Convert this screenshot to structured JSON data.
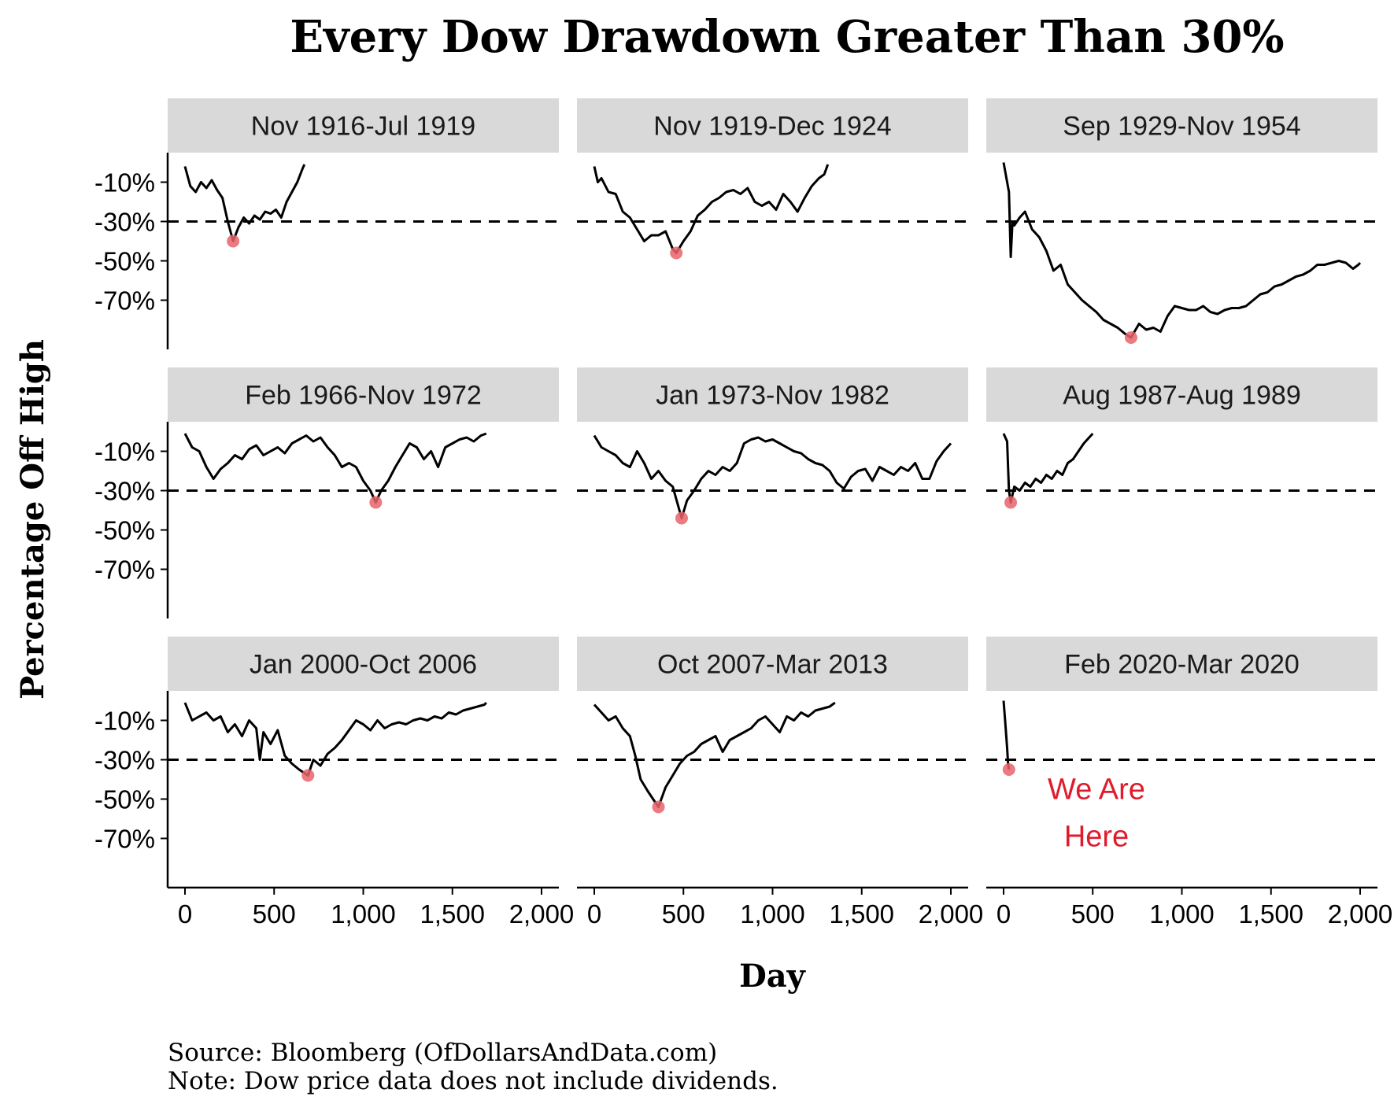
{
  "chart_data": {
    "type": "line",
    "title": "Every Dow Drawdown Greater Than 30%",
    "xlabel": "Day",
    "ylabel": "Percentage Off High",
    "xlim": [
      0,
      2000
    ],
    "ylim": [
      -95,
      5
    ],
    "x_ticks": [
      0,
      500,
      1000,
      1500,
      2000
    ],
    "x_tick_labels": [
      "0",
      "500",
      "1,000",
      "1,500",
      "2,000"
    ],
    "y_ticks": [
      -10,
      -30,
      -50,
      -70
    ],
    "y_tick_labels": [
      "-10%",
      "-30%",
      "-50%",
      "-70%"
    ],
    "reference_line": {
      "y": -30,
      "style": "dashed"
    },
    "grid": false,
    "colors": {
      "line": "#000000",
      "trough_point": "#e8636b",
      "annotation": "#e01b2c",
      "strip": "#d9d9d9"
    },
    "annotation": {
      "panel": 8,
      "lines": [
        "We Are",
        "Here"
      ]
    },
    "panels": [
      {
        "label": "Nov 1916-Jul 1919",
        "trough": {
          "x": 270,
          "y": -40
        },
        "x": [
          0,
          30,
          60,
          90,
          120,
          150,
          180,
          210,
          240,
          270,
          300,
          330,
          360,
          390,
          420,
          450,
          480,
          510,
          540,
          570,
          600,
          630,
          660,
          670
        ],
        "y": [
          -2,
          -12,
          -15,
          -10,
          -13,
          -9,
          -14,
          -18,
          -30,
          -40,
          -33,
          -28,
          -31,
          -27,
          -29,
          -25,
          -26,
          -24,
          -28,
          -20,
          -15,
          -10,
          -3,
          -1
        ]
      },
      {
        "label": "Nov 1919-Dec 1924",
        "trough": {
          "x": 460,
          "y": -46
        },
        "x": [
          0,
          20,
          40,
          80,
          120,
          160,
          200,
          240,
          280,
          320,
          360,
          400,
          440,
          460,
          500,
          540,
          580,
          620,
          660,
          700,
          740,
          780,
          820,
          860,
          900,
          940,
          980,
          1020,
          1060,
          1100,
          1140,
          1180,
          1220,
          1260,
          1290,
          1310
        ],
        "y": [
          -2,
          -10,
          -8,
          -15,
          -16,
          -25,
          -28,
          -34,
          -40,
          -37,
          -37,
          -35,
          -44,
          -46,
          -40,
          -35,
          -27,
          -24,
          -20,
          -18,
          -15,
          -14,
          -16,
          -13,
          -20,
          -22,
          -20,
          -24,
          -16,
          -20,
          -25,
          -18,
          -12,
          -8,
          -6,
          -1
        ]
      },
      {
        "label": "Sep 1929-Nov 1954",
        "trough": {
          "x": 715,
          "y": -89
        },
        "x": [
          0,
          30,
          40,
          50,
          60,
          90,
          120,
          160,
          200,
          240,
          280,
          320,
          360,
          400,
          440,
          480,
          520,
          560,
          600,
          640,
          680,
          715,
          760,
          800,
          840,
          880,
          920,
          960,
          1000,
          1040,
          1080,
          1120,
          1160,
          1200,
          1240,
          1280,
          1320,
          1360,
          1400,
          1440,
          1480,
          1520,
          1560,
          1600,
          1640,
          1680,
          1720,
          1760,
          1800,
          1840,
          1880,
          1920,
          1960,
          1990,
          2000
        ],
        "y": [
          0,
          -15,
          -48,
          -30,
          -32,
          -28,
          -25,
          -34,
          -38,
          -45,
          -55,
          -52,
          -62,
          -66,
          -70,
          -73,
          -76,
          -80,
          -82,
          -84,
          -87,
          -89,
          -82,
          -85,
          -84,
          -86,
          -78,
          -73,
          -74,
          -75,
          -75,
          -73,
          -76,
          -77,
          -75,
          -74,
          -74,
          -73,
          -70,
          -67,
          -66,
          -63,
          -62,
          -60,
          -58,
          -57,
          -55,
          -52,
          -52,
          -51,
          -50,
          -51,
          -54,
          -52,
          -51
        ]
      },
      {
        "label": "Feb 1966-Nov 1972",
        "trough": {
          "x": 1070,
          "y": -36
        },
        "x": [
          0,
          40,
          80,
          120,
          160,
          200,
          240,
          280,
          320,
          360,
          400,
          440,
          480,
          520,
          560,
          600,
          640,
          680,
          720,
          760,
          800,
          840,
          880,
          920,
          960,
          1000,
          1040,
          1070,
          1100,
          1140,
          1180,
          1220,
          1260,
          1300,
          1340,
          1380,
          1420,
          1460,
          1500,
          1540,
          1580,
          1620,
          1660,
          1690
        ],
        "y": [
          -1,
          -8,
          -10,
          -18,
          -24,
          -19,
          -16,
          -12,
          -14,
          -9,
          -7,
          -12,
          -10,
          -8,
          -11,
          -6,
          -4,
          -2,
          -5,
          -3,
          -8,
          -12,
          -18,
          -16,
          -18,
          -25,
          -30,
          -36,
          -30,
          -25,
          -18,
          -12,
          -6,
          -8,
          -14,
          -10,
          -18,
          -8,
          -6,
          -4,
          -3,
          -5,
          -2,
          -1
        ]
      },
      {
        "label": "Jan 1973-Nov 1982",
        "trough": {
          "x": 490,
          "y": -44
        },
        "x": [
          0,
          40,
          80,
          120,
          160,
          200,
          240,
          280,
          320,
          360,
          400,
          440,
          490,
          520,
          560,
          600,
          640,
          680,
          720,
          760,
          800,
          840,
          880,
          920,
          960,
          1000,
          1040,
          1080,
          1120,
          1160,
          1200,
          1240,
          1280,
          1320,
          1360,
          1400,
          1440,
          1480,
          1520,
          1560,
          1600,
          1640,
          1680,
          1720,
          1760,
          1800,
          1840,
          1880,
          1920,
          1960,
          2000
        ],
        "y": [
          -2,
          -8,
          -10,
          -12,
          -16,
          -18,
          -10,
          -16,
          -24,
          -20,
          -25,
          -28,
          -44,
          -35,
          -30,
          -24,
          -20,
          -22,
          -18,
          -20,
          -16,
          -6,
          -4,
          -3,
          -5,
          -4,
          -6,
          -8,
          -10,
          -11,
          -14,
          -16,
          -17,
          -20,
          -26,
          -29,
          -23,
          -20,
          -19,
          -25,
          -18,
          -20,
          -22,
          -18,
          -20,
          -16,
          -24,
          -24,
          -15,
          -10,
          -6
        ]
      },
      {
        "label": "Aug 1987-Aug 1989",
        "trough": {
          "x": 40,
          "y": -36
        },
        "x": [
          0,
          20,
          30,
          40,
          60,
          90,
          120,
          150,
          180,
          210,
          240,
          270,
          300,
          330,
          360,
          390,
          420,
          450,
          480,
          500
        ],
        "y": [
          -1,
          -5,
          -30,
          -36,
          -28,
          -30,
          -26,
          -28,
          -24,
          -26,
          -22,
          -24,
          -20,
          -22,
          -16,
          -14,
          -10,
          -6,
          -3,
          -1
        ]
      },
      {
        "label": "Jan 2000-Oct 2006",
        "trough": {
          "x": 690,
          "y": -38
        },
        "x": [
          0,
          40,
          80,
          120,
          160,
          200,
          240,
          280,
          320,
          360,
          400,
          420,
          440,
          480,
          520,
          560,
          600,
          640,
          690,
          720,
          760,
          800,
          840,
          880,
          920,
          960,
          1000,
          1040,
          1080,
          1120,
          1160,
          1200,
          1240,
          1280,
          1320,
          1360,
          1400,
          1440,
          1480,
          1520,
          1560,
          1600,
          1640,
          1680,
          1690
        ],
        "y": [
          -1,
          -10,
          -8,
          -6,
          -10,
          -8,
          -16,
          -12,
          -18,
          -10,
          -14,
          -30,
          -16,
          -22,
          -15,
          -28,
          -32,
          -35,
          -38,
          -30,
          -33,
          -27,
          -24,
          -20,
          -15,
          -10,
          -12,
          -15,
          -10,
          -14,
          -12,
          -11,
          -12,
          -10,
          -9,
          -10,
          -8,
          -9,
          -6,
          -7,
          -5,
          -4,
          -3,
          -2,
          -1
        ]
      },
      {
        "label": "Oct 2007-Mar 2013",
        "trough": {
          "x": 360,
          "y": -54
        },
        "x": [
          0,
          40,
          80,
          120,
          160,
          200,
          230,
          260,
          300,
          330,
          360,
          400,
          440,
          480,
          520,
          560,
          600,
          640,
          680,
          720,
          760,
          800,
          840,
          880,
          920,
          960,
          1000,
          1040,
          1080,
          1120,
          1160,
          1200,
          1240,
          1280,
          1320,
          1350
        ],
        "y": [
          -2,
          -6,
          -10,
          -8,
          -14,
          -18,
          -28,
          -40,
          -46,
          -50,
          -54,
          -44,
          -38,
          -32,
          -28,
          -26,
          -22,
          -20,
          -18,
          -26,
          -20,
          -18,
          -16,
          -14,
          -10,
          -8,
          -12,
          -16,
          -8,
          -10,
          -6,
          -8,
          -5,
          -4,
          -3,
          -1
        ]
      },
      {
        "label": "Feb 2020-Mar 2020",
        "trough": {
          "x": 30,
          "y": -35
        },
        "x": [
          0,
          10,
          20,
          25,
          30
        ],
        "y": [
          0,
          -12,
          -24,
          -32,
          -35
        ]
      }
    ]
  },
  "footer": {
    "source": "Source: Bloomberg (OfDollarsAndData.com)",
    "note": "Note: Dow price data does not include dividends."
  }
}
